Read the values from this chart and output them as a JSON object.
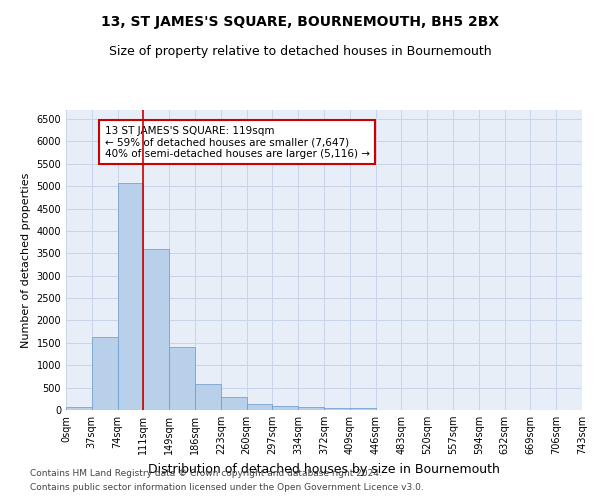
{
  "title": "13, ST JAMES'S SQUARE, BOURNEMOUTH, BH5 2BX",
  "subtitle": "Size of property relative to detached houses in Bournemouth",
  "xlabel": "Distribution of detached houses by size in Bournemouth",
  "ylabel": "Number of detached properties",
  "footer_line1": "Contains HM Land Registry data © Crown copyright and database right 2024.",
  "footer_line2": "Contains public sector information licensed under the Open Government Licence v3.0.",
  "bin_labels": [
    "0sqm",
    "37sqm",
    "74sqm",
    "111sqm",
    "149sqm",
    "186sqm",
    "223sqm",
    "260sqm",
    "297sqm",
    "334sqm",
    "372sqm",
    "409sqm",
    "446sqm",
    "483sqm",
    "520sqm",
    "557sqm",
    "594sqm",
    "632sqm",
    "669sqm",
    "706sqm",
    "743sqm"
  ],
  "bar_values": [
    75,
    1625,
    5075,
    3600,
    1400,
    590,
    290,
    145,
    100,
    75,
    55,
    55,
    0,
    0,
    0,
    0,
    0,
    0,
    0,
    0
  ],
  "bar_color": "#b8d0ea",
  "bar_edge_color": "#6699cc",
  "grid_color": "#c8d4e8",
  "background_color": "#e8eef8",
  "vline_x": 3.0,
  "vline_color": "#cc0000",
  "ylim": [
    0,
    6700
  ],
  "yticks": [
    0,
    500,
    1000,
    1500,
    2000,
    2500,
    3000,
    3500,
    4000,
    4500,
    5000,
    5500,
    6000,
    6500
  ],
  "annotation_text": "13 ST JAMES'S SQUARE: 119sqm\n← 59% of detached houses are smaller (7,647)\n40% of semi-detached houses are larger (5,116) →",
  "annotation_box_facecolor": "#ffffff",
  "annotation_box_edgecolor": "#cc0000",
  "title_fontsize": 10,
  "subtitle_fontsize": 9,
  "xlabel_fontsize": 9,
  "ylabel_fontsize": 8,
  "tick_fontsize": 7,
  "annotation_fontsize": 7.5,
  "footer_fontsize": 6.5
}
